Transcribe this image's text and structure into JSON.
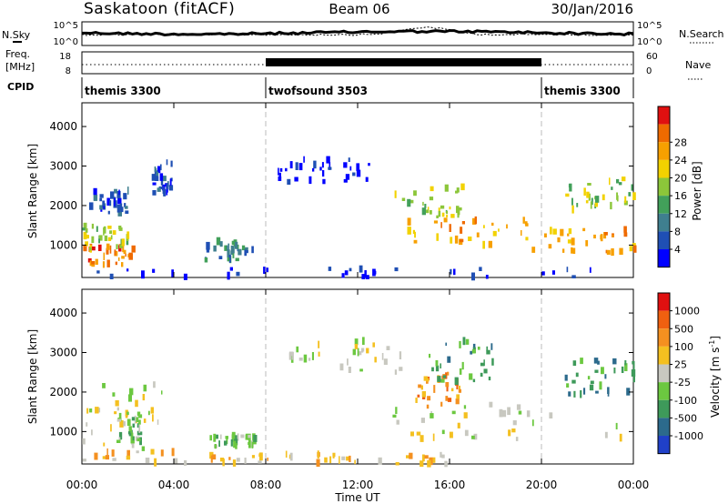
{
  "header": {
    "radar": "Saskatoon (fitACF)",
    "beam": "Beam 06",
    "date": "30/Jan/2016"
  },
  "top_labels": {
    "nsky": "N.Sky",
    "nsky_ticks": [
      "10^5",
      "10^0"
    ],
    "nsearch": "N.Search",
    "nsearch_ticks": [
      "10^5",
      "10^0"
    ],
    "freq": "Freq.",
    "freq_unit": "[MHz]",
    "freq_ticks": [
      "18",
      "8"
    ],
    "nave": "Nave",
    "nave_ticks": [
      "60",
      "0"
    ],
    "cpid": "CPID"
  },
  "cpid_segments": [
    {
      "name": "themis 3300",
      "start_h": 0,
      "end_h": 8
    },
    {
      "name": "twofsound 3503",
      "start_h": 8,
      "end_h": 20
    },
    {
      "name": "themis 3300",
      "start_h": 20,
      "end_h": 24
    }
  ],
  "chart_data": [
    {
      "type": "heatmap",
      "panel": "power",
      "ylabel": "Slant Range [km]",
      "ylim": [
        180,
        4600
      ],
      "yticks": [
        "1000",
        "2000",
        "3000",
        "4000"
      ],
      "xlim": [
        0,
        24
      ],
      "colorbar_label": "Power [dB]",
      "colorbar_ticks": [
        "4",
        "8",
        "12",
        "16",
        "20",
        "24",
        "28"
      ],
      "colors": [
        "#0000ff",
        "#1f4fb4",
        "#3f7f8f",
        "#42a05a",
        "#8cc63a",
        "#f2d200",
        "#f7a000",
        "#ef6a00",
        "#e01010"
      ],
      "scatter_regions": [
        {
          "t0": 0.0,
          "t1": 2.2,
          "r0": 500,
          "r1": 1000,
          "level": 7
        },
        {
          "t0": 0.0,
          "t1": 2.0,
          "r0": 900,
          "r1": 1500,
          "level": 4
        },
        {
          "t0": 0.3,
          "t1": 2.0,
          "r0": 1800,
          "r1": 2400,
          "level": 1
        },
        {
          "t0": 3.0,
          "t1": 3.9,
          "r0": 2300,
          "r1": 3200,
          "level": 1
        },
        {
          "t0": 5.3,
          "t1": 7.5,
          "r0": 600,
          "r1": 1100,
          "level": 2
        },
        {
          "t0": 14.0,
          "t1": 19.5,
          "r0": 1000,
          "r1": 1700,
          "level": 6
        },
        {
          "t0": 13.5,
          "t1": 16.5,
          "r0": 1700,
          "r1": 2500,
          "level": 4
        },
        {
          "t0": 19.5,
          "t1": 24.0,
          "r0": 800,
          "r1": 1400,
          "level": 6
        },
        {
          "t0": 21.0,
          "t1": 24.0,
          "r0": 1900,
          "r1": 2700,
          "level": 4
        },
        {
          "t0": 8.5,
          "t1": 12.5,
          "r0": 2600,
          "r1": 3200,
          "level": 0
        },
        {
          "t0": 0.0,
          "t1": 24.0,
          "r0": 180,
          "r1": 400,
          "level": 0
        }
      ]
    },
    {
      "type": "heatmap",
      "panel": "velocity",
      "ylabel": "Slant Range [km]",
      "ylim": [
        180,
        4600
      ],
      "yticks": [
        "1000",
        "2000",
        "3000",
        "4000"
      ],
      "xlim": [
        0,
        24
      ],
      "xticks": [
        "00:00",
        "04:00",
        "08:00",
        "12:00",
        "16:00",
        "20:00",
        "00:00"
      ],
      "xlabel": "Time UT",
      "colorbar_label": "Velocity [m s",
      "colorbar_label_sup": "-1",
      "colorbar_ticks": [
        "1000",
        "500",
        "100",
        "25",
        "-25",
        "-100",
        "-500",
        "-1000"
      ],
      "colors": [
        "#2040c8",
        "#2c6a8c",
        "#3e9a5a",
        "#6cc840",
        "#c8c8c0",
        "#f4c020",
        "#f49020",
        "#f06010",
        "#e01010"
      ],
      "scatter_regions": [
        {
          "t0": 0.0,
          "t1": 3.5,
          "r0": 500,
          "r1": 2400,
          "level": 4
        },
        {
          "t0": 1.5,
          "t1": 2.5,
          "r0": 700,
          "r1": 1500,
          "level": 3
        },
        {
          "t0": 0.0,
          "t1": 8.0,
          "r0": 180,
          "r1": 500,
          "level": 5
        },
        {
          "t0": 5.5,
          "t1": 7.5,
          "r0": 600,
          "r1": 900,
          "level": 3
        },
        {
          "t0": 8.0,
          "t1": 16.0,
          "r0": 180,
          "r1": 450,
          "level": 5
        },
        {
          "t0": 9.0,
          "t1": 14.0,
          "r0": 2500,
          "r1": 3300,
          "level": 4
        },
        {
          "t0": 13.5,
          "t1": 24.0,
          "r0": 800,
          "r1": 1700,
          "level": 4
        },
        {
          "t0": 14.5,
          "t1": 16.5,
          "r0": 1600,
          "r1": 2500,
          "level": 6
        },
        {
          "t0": 15.0,
          "t1": 18.0,
          "r0": 2200,
          "r1": 3300,
          "level": 2
        },
        {
          "t0": 21.0,
          "t1": 24.0,
          "r0": 1900,
          "r1": 2800,
          "level": 2
        }
      ]
    }
  ]
}
